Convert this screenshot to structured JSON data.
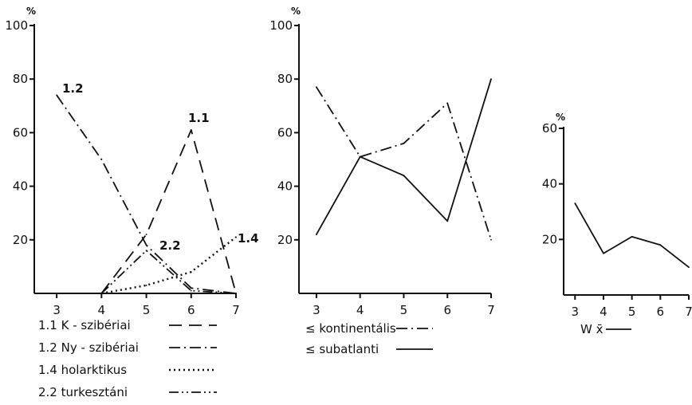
{
  "chart_data": [
    {
      "type": "line",
      "unit": "%",
      "x": [
        3,
        4,
        5,
        6,
        7
      ],
      "ylim": [
        0,
        100
      ],
      "y_ticks": [
        20,
        40,
        60,
        80,
        100
      ],
      "x_ticks": [
        3,
        4,
        5,
        6,
        7
      ],
      "series": [
        {
          "name": "1.1 K-szibériai",
          "label": "1.1",
          "style": "dash",
          "x": [
            4,
            5,
            6,
            7
          ],
          "values": [
            0,
            22,
            61,
            0
          ]
        },
        {
          "name": "1.2 Ny-szibériai",
          "label": "1.2",
          "style": "dashdot",
          "x": [
            3,
            4,
            5,
            6,
            7
          ],
          "values": [
            74,
            50,
            18,
            2,
            0
          ]
        },
        {
          "name": "1.4 holarktikus",
          "label": "1.4",
          "style": "dot",
          "x": [
            4,
            5,
            6,
            7
          ],
          "values": [
            0,
            3,
            8,
            21
          ]
        },
        {
          "name": "2.2 turkesztáni",
          "label": "2.2",
          "style": "dashdotdot",
          "x": [
            4,
            5,
            6,
            7
          ],
          "values": [
            0,
            16,
            1,
            0
          ]
        }
      ],
      "legend": [
        {
          "text": "1.1 K - szibériai",
          "style": "dash"
        },
        {
          "text": "1.2 Ny - szibériai",
          "style": "dashdot"
        },
        {
          "text": "1.4 holarktikus",
          "style": "dot"
        },
        {
          "text": "2.2 turkesztáni",
          "style": "dashdotdot"
        }
      ]
    },
    {
      "type": "line",
      "unit": "%",
      "ylim": [
        0,
        100
      ],
      "y_ticks": [
        20,
        40,
        60,
        80,
        100
      ],
      "x_ticks": [
        3,
        4,
        5,
        6,
        7
      ],
      "series": [
        {
          "name": "kontinentális",
          "style": "dashdot",
          "x": [
            3,
            4,
            5,
            6,
            7
          ],
          "values": [
            77,
            51,
            56,
            71,
            20
          ]
        },
        {
          "name": "subatlanti",
          "style": "solid",
          "x": [
            3,
            4,
            5,
            6,
            7
          ],
          "values": [
            22,
            51,
            44,
            27,
            80
          ]
        }
      ],
      "legend": [
        {
          "text": "≤ kontinentális",
          "style": "dashdot"
        },
        {
          "text": "≤ subatlanti",
          "style": "solid"
        }
      ]
    },
    {
      "type": "line",
      "unit": "%",
      "ylim": [
        0,
        60
      ],
      "y_ticks": [
        20,
        40,
        60
      ],
      "x_ticks": [
        3,
        4,
        5,
        6,
        7
      ],
      "series": [
        {
          "name": "W x̄",
          "style": "solid",
          "x": [
            3,
            4,
            5,
            6,
            7
          ],
          "values": [
            33,
            15,
            21,
            18,
            10
          ]
        }
      ],
      "legend": [
        {
          "text": "W x̄",
          "style": "solid"
        }
      ]
    }
  ]
}
